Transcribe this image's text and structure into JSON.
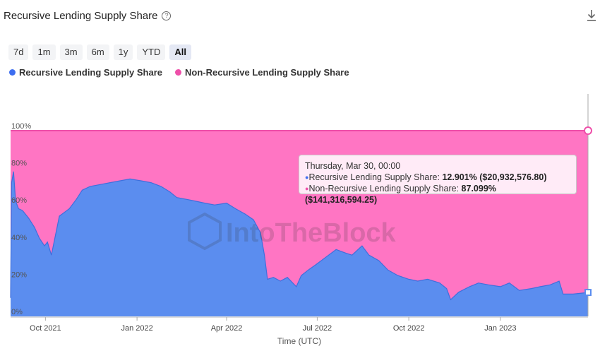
{
  "header": {
    "title": "Recursive Lending Supply Share",
    "help_icon": "?"
  },
  "ranges": [
    "7d",
    "1m",
    "3m",
    "6m",
    "1y",
    "YTD",
    "All"
  ],
  "active_range": "All",
  "legend": [
    {
      "label": "Recursive Lending Supply Share",
      "color": "#3d6ef0"
    },
    {
      "label": "Non-Recursive Lending Supply Share",
      "color": "#ee4fa9"
    }
  ],
  "watermark": "IntoTheBlock",
  "tooltip": {
    "date": "Thursday, Mar 30, 00:00",
    "rows": [
      {
        "name": "Recursive Lending Supply Share",
        "value": "12.901% ($20,932,576.80)",
        "color": "#3d6ef0"
      },
      {
        "name": "Non-Recursive Lending Supply Share",
        "value": "87.099% ($141,316,594.25)",
        "color": "#ee4fa9"
      }
    ]
  },
  "chart_data": {
    "type": "area",
    "xlabel": "Time (UTC)",
    "ylabel": "",
    "ylim": [
      0,
      100
    ],
    "y_ticks": [
      "0%",
      "20%",
      "40%",
      "60%",
      "80%",
      "100%"
    ],
    "x_ticks": [
      "Oct 2021",
      "Jan 2022",
      "Apr 2022",
      "Jul 2022",
      "Oct 2022",
      "Jan 2023"
    ],
    "x_range": [
      "2021-08-27",
      "2023-03-30"
    ],
    "stacked": true,
    "series": [
      {
        "name": "Recursive Lending Supply Share",
        "color": "#5b8def",
        "points": [
          [
            "2021-08-27",
            10
          ],
          [
            "2021-08-28",
            72
          ],
          [
            "2021-08-30",
            78
          ],
          [
            "2021-09-01",
            62
          ],
          [
            "2021-09-04",
            58
          ],
          [
            "2021-09-08",
            57
          ],
          [
            "2021-09-14",
            53
          ],
          [
            "2021-09-20",
            48
          ],
          [
            "2021-09-25",
            42
          ],
          [
            "2021-09-30",
            38
          ],
          [
            "2021-10-03",
            40
          ],
          [
            "2021-10-07",
            33
          ],
          [
            "2021-10-10",
            41
          ],
          [
            "2021-10-15",
            54
          ],
          [
            "2021-10-20",
            56
          ],
          [
            "2021-10-25",
            58
          ],
          [
            "2021-11-01",
            63
          ],
          [
            "2021-11-07",
            68
          ],
          [
            "2021-11-15",
            70
          ],
          [
            "2021-11-25",
            71
          ],
          [
            "2021-12-05",
            72
          ],
          [
            "2021-12-15",
            73
          ],
          [
            "2021-12-25",
            74
          ],
          [
            "2022-01-05",
            73
          ],
          [
            "2022-01-15",
            72
          ],
          [
            "2022-01-25",
            70
          ],
          [
            "2022-02-03",
            67
          ],
          [
            "2022-02-10",
            64
          ],
          [
            "2022-02-20",
            63
          ],
          [
            "2022-03-01",
            62
          ],
          [
            "2022-03-10",
            61
          ],
          [
            "2022-03-20",
            60
          ],
          [
            "2022-04-01",
            61
          ],
          [
            "2022-04-10",
            58
          ],
          [
            "2022-04-20",
            55
          ],
          [
            "2022-04-28",
            52
          ],
          [
            "2022-05-05",
            45
          ],
          [
            "2022-05-09",
            33
          ],
          [
            "2022-05-12",
            20
          ],
          [
            "2022-05-18",
            21
          ],
          [
            "2022-05-25",
            19
          ],
          [
            "2022-06-01",
            21
          ],
          [
            "2022-06-10",
            16
          ],
          [
            "2022-06-15",
            22
          ],
          [
            "2022-06-22",
            25
          ],
          [
            "2022-06-30",
            28
          ],
          [
            "2022-07-10",
            32
          ],
          [
            "2022-07-20",
            36
          ],
          [
            "2022-07-30",
            34
          ],
          [
            "2022-08-05",
            33
          ],
          [
            "2022-08-15",
            38
          ],
          [
            "2022-08-22",
            33
          ],
          [
            "2022-09-01",
            30
          ],
          [
            "2022-09-10",
            25
          ],
          [
            "2022-09-20",
            22
          ],
          [
            "2022-10-01",
            20
          ],
          [
            "2022-10-10",
            19
          ],
          [
            "2022-10-20",
            20
          ],
          [
            "2022-11-01",
            18
          ],
          [
            "2022-11-08",
            15
          ],
          [
            "2022-11-12",
            9
          ],
          [
            "2022-11-20",
            13
          ],
          [
            "2022-12-01",
            16
          ],
          [
            "2022-12-10",
            18
          ],
          [
            "2022-12-20",
            17
          ],
          [
            "2023-01-01",
            16
          ],
          [
            "2023-01-10",
            18
          ],
          [
            "2023-01-20",
            14
          ],
          [
            "2023-02-01",
            15
          ],
          [
            "2023-02-10",
            16
          ],
          [
            "2023-02-20",
            17
          ],
          [
            "2023-03-01",
            19
          ],
          [
            "2023-03-05",
            12
          ],
          [
            "2023-03-15",
            12
          ],
          [
            "2023-03-30",
            12.9
          ]
        ]
      },
      {
        "name": "Non-Recursive Lending Supply Share",
        "color": "#ee4fa9",
        "fill": "#ff75c3",
        "note_stacked_to": 100
      }
    ]
  }
}
